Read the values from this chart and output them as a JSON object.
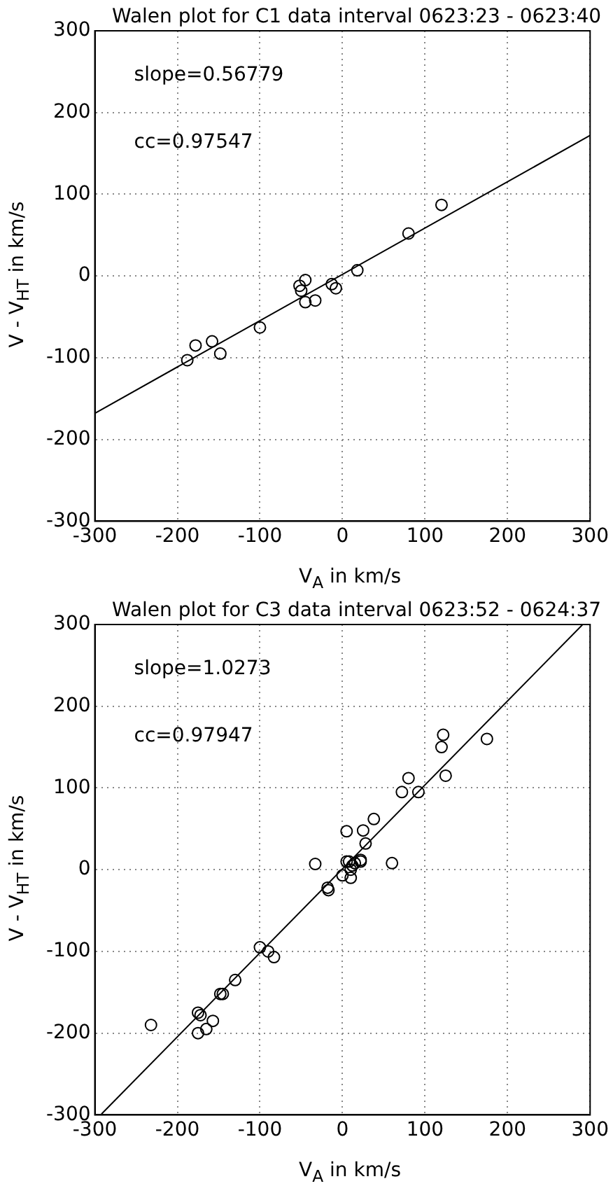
{
  "chart_data": [
    {
      "type": "scatter",
      "title": "Walen plot for C1 data interval 0623:23 - 0623:40",
      "xlabel": "V$_{A}$  in km/s",
      "ylabel": "V - V$_{HT}$  in km/s",
      "annotations": [
        "slope=0.56779",
        "cc=0.97547"
      ],
      "xlim": [
        -300,
        300
      ],
      "ylim": [
        -300,
        300
      ],
      "xticks": [
        -300,
        -200,
        -100,
        0,
        100,
        200,
        300
      ],
      "yticks": [
        -300,
        -200,
        -100,
        0,
        100,
        200,
        300
      ],
      "grid": true,
      "series": [
        {
          "type": "scatter",
          "marker": "circle",
          "color": "#000000",
          "x": [
            -188,
            -178,
            -158,
            -148,
            -100,
            -52,
            -50,
            -45,
            -45,
            -33,
            -13,
            -8,
            18,
            80,
            120
          ],
          "values": [
            -103,
            -85,
            -80,
            -95,
            -63,
            -12,
            -18,
            -5,
            -32,
            -30,
            -10,
            -15,
            7,
            52,
            87
          ]
        },
        {
          "type": "line",
          "marker": "none",
          "color": "#000000",
          "x": [
            -300,
            300
          ],
          "values": [
            -168,
            172
          ]
        }
      ]
    },
    {
      "type": "scatter",
      "title": "Walen plot for C3 data interval 0623:52 - 0624:37",
      "xlabel": "V$_{A}$  in km/s",
      "ylabel": "V - V$_{HT}$  in km/s",
      "annotations": [
        "slope=1.0273",
        "cc=0.97947"
      ],
      "xlim": [
        -300,
        300
      ],
      "ylim": [
        -300,
        300
      ],
      "xticks": [
        -300,
        -200,
        -100,
        0,
        100,
        200,
        300
      ],
      "yticks": [
        -300,
        -200,
        -100,
        0,
        100,
        200,
        300
      ],
      "grid": true,
      "series": [
        {
          "type": "scatter",
          "marker": "circle",
          "color": "#000000",
          "x": [
            -232,
            -175,
            -172,
            -175,
            -165,
            -157,
            -148,
            -145,
            -130,
            -100,
            -90,
            -83,
            -33,
            -18,
            -17,
            0,
            5,
            8,
            5,
            10,
            12,
            10,
            15,
            22,
            22,
            25,
            28,
            38,
            60,
            72,
            80,
            92,
            120,
            122,
            125,
            175
          ],
          "values": [
            -190,
            -175,
            -178,
            -200,
            -195,
            -185,
            -152,
            -152,
            -135,
            -95,
            -100,
            -107,
            7,
            -22,
            -25,
            -7,
            10,
            10,
            47,
            -10,
            5,
            0,
            8,
            10,
            12,
            48,
            32,
            62,
            8,
            95,
            112,
            95,
            150,
            165,
            115,
            160
          ]
        },
        {
          "type": "line",
          "marker": "none",
          "color": "#000000",
          "x": [
            -292,
            291
          ],
          "values": [
            -299,
            300
          ]
        }
      ]
    }
  ]
}
